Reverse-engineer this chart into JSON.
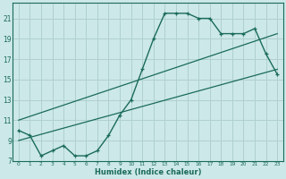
{
  "xlabel": "Humidex (Indice chaleur)",
  "bg_color": "#cce8e8",
  "grid_color": "#b0d0d0",
  "line_color": "#1a6b5a",
  "xlim": [
    -0.5,
    23.5
  ],
  "ylim": [
    7,
    22.5
  ],
  "xticks": [
    0,
    1,
    2,
    3,
    4,
    5,
    6,
    7,
    8,
    9,
    10,
    11,
    12,
    13,
    14,
    15,
    16,
    17,
    18,
    19,
    20,
    21,
    22,
    23
  ],
  "yticks": [
    7,
    9,
    11,
    13,
    15,
    17,
    19,
    21
  ],
  "main_x": [
    0,
    1,
    2,
    3,
    4,
    5,
    6,
    7,
    8,
    9,
    10,
    11,
    12,
    13,
    14,
    15,
    16,
    17,
    18,
    19,
    20,
    21,
    22,
    23
  ],
  "main_y": [
    10,
    9.5,
    7.5,
    8.0,
    8.5,
    7.5,
    7.5,
    8.0,
    9.5,
    11.5,
    13.0,
    16.0,
    19.0,
    21.5,
    21.5,
    21.5,
    21.0,
    21.0,
    19.5,
    19.5,
    19.5,
    20.0,
    17.5,
    15.5
  ],
  "line1_x": [
    0,
    23
  ],
  "line1_y": [
    9.0,
    16.0
  ],
  "line2_x": [
    0,
    23
  ],
  "line2_y": [
    11.0,
    19.5
  ]
}
